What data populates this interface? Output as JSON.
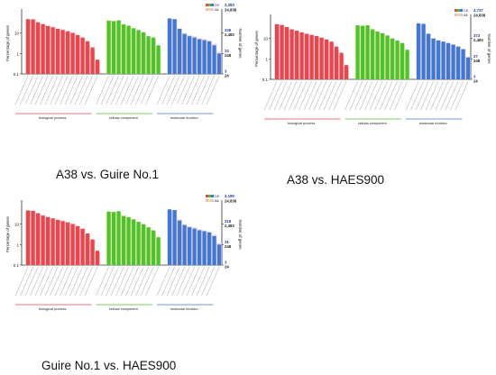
{
  "captions": {
    "panel_a": "A38 vs. Guire No.1",
    "panel_b": "A38 vs. HAES900",
    "panel_c": "Guire No.1 vs. HAES900"
  },
  "colors": {
    "biological_process": "#e8474b",
    "cellular_component": "#4dc233",
    "molecular_function": "#3f79d1",
    "all_shade": "#f4b6c8",
    "all_shade_cc": "#e3e38a",
    "all_shade_mf": "#ddc5e8",
    "right_axis_label": "#1f3fa3"
  },
  "chart_data": [
    {
      "type": "bar",
      "panel": "A38 vs. Guire No.1",
      "ylabel": "Percentage of genes",
      "y2label": "Number of genes",
      "yscale": "log",
      "ylim": [
        0.1,
        100
      ],
      "y_ticks": [
        "10",
        "1",
        "0.1"
      ],
      "legend": [
        "DE",
        "All"
      ],
      "legend_values": [
        "3,393",
        "24,838"
      ],
      "right_ticks": [
        [
          "339",
          "2,483"
        ],
        [
          "33",
          "248"
        ],
        [
          "3",
          "24"
        ]
      ],
      "groups": [
        "biological process",
        "cellular component",
        "molecular function"
      ],
      "series": [
        {
          "name": "DE",
          "group": "biological process",
          "values": [
            48,
            47,
            33,
            27,
            22,
            19,
            16,
            14,
            12,
            10,
            8,
            6,
            4,
            2,
            0.5
          ]
        },
        {
          "name": "All",
          "group": "biological process",
          "values": [
            46,
            45,
            35,
            28,
            23,
            20,
            17,
            15,
            13,
            11,
            8,
            6,
            3,
            1.5,
            0.4
          ]
        },
        {
          "name": "DE",
          "group": "cellular component",
          "values": [
            40,
            38,
            42,
            26,
            23,
            17,
            14,
            11,
            7,
            6,
            2.5
          ]
        },
        {
          "name": "All",
          "group": "cellular component",
          "values": [
            42,
            40,
            40,
            27,
            22,
            18,
            13,
            10,
            7,
            5,
            2.2
          ]
        },
        {
          "name": "DE",
          "group": "molecular function",
          "values": [
            52,
            48,
            16,
            9,
            7,
            6,
            5,
            4.5,
            4,
            2.5,
            1
          ]
        },
        {
          "name": "All",
          "group": "molecular function",
          "values": [
            50,
            45,
            17,
            10,
            8,
            7,
            5.5,
            5,
            4,
            3,
            1.2
          ]
        }
      ]
    },
    {
      "type": "bar",
      "panel": "A38 vs. HAES900",
      "ylabel": "Percentage of genes",
      "y2label": "Number of genes",
      "yscale": "log",
      "ylim": [
        0.1,
        100
      ],
      "y_ticks": [
        "10",
        "1",
        "0.1"
      ],
      "legend": [
        "DE",
        "All"
      ],
      "legend_values": [
        "3,737",
        "24,838"
      ],
      "right_ticks": [
        [
          "373",
          "2,483"
        ],
        [
          "37",
          "248"
        ],
        [
          "3",
          "24"
        ]
      ],
      "groups": [
        "biological process",
        "cellular component",
        "molecular function"
      ],
      "series": [
        {
          "name": "DE",
          "group": "biological process",
          "values": [
            50,
            46,
            36,
            28,
            24,
            20,
            17,
            15,
            13,
            11,
            9,
            7,
            4,
            2,
            0.5
          ]
        },
        {
          "name": "All",
          "group": "biological process",
          "values": [
            46,
            45,
            35,
            28,
            23,
            20,
            17,
            15,
            13,
            11,
            8,
            6,
            3,
            1.5,
            0.4
          ]
        },
        {
          "name": "DE",
          "group": "cellular component",
          "values": [
            44,
            42,
            44,
            28,
            22,
            18,
            14,
            10,
            8,
            6,
            2.8
          ]
        },
        {
          "name": "All",
          "group": "cellular component",
          "values": [
            42,
            40,
            40,
            27,
            22,
            18,
            13,
            10,
            7,
            5,
            2.2
          ]
        },
        {
          "name": "DE",
          "group": "molecular function",
          "values": [
            55,
            52,
            17,
            10,
            8,
            7,
            6,
            5,
            4,
            3,
            1.2
          ]
        },
        {
          "name": "All",
          "group": "molecular function",
          "values": [
            50,
            45,
            17,
            10,
            8,
            7,
            5.5,
            5,
            4,
            3,
            1.2
          ]
        }
      ]
    },
    {
      "type": "bar",
      "panel": "Guire No.1 vs. HAES900",
      "ylabel": "Percentage of genes",
      "y2label": "Number of genes",
      "yscale": "log",
      "ylim": [
        0.1,
        100
      ],
      "y_ticks": [
        "10",
        "1",
        "0.1"
      ],
      "legend": [
        "DE",
        "All"
      ],
      "legend_values": [
        "3,189",
        "24,838"
      ],
      "right_ticks": [
        [
          "318",
          "2,483"
        ],
        [
          "31",
          "248"
        ],
        [
          "3",
          "24"
        ]
      ],
      "groups": [
        "biological process",
        "cellular component",
        "molecular function"
      ],
      "series": [
        {
          "name": "DE",
          "group": "biological process",
          "values": [
            47,
            45,
            34,
            26,
            22,
            19,
            16,
            14,
            12,
            10,
            8,
            6,
            3.5,
            1.8,
            0.5
          ]
        },
        {
          "name": "All",
          "group": "biological process",
          "values": [
            46,
            45,
            35,
            28,
            23,
            20,
            17,
            15,
            13,
            11,
            8,
            6,
            3,
            1.5,
            0.4
          ]
        },
        {
          "name": "DE",
          "group": "cellular component",
          "values": [
            41,
            39,
            43,
            25,
            22,
            17,
            13,
            10,
            7,
            5,
            2.3
          ]
        },
        {
          "name": "All",
          "group": "cellular component",
          "values": [
            42,
            40,
            40,
            27,
            22,
            18,
            13,
            10,
            7,
            5,
            2.2
          ]
        },
        {
          "name": "DE",
          "group": "molecular function",
          "values": [
            53,
            49,
            15,
            9,
            7,
            6,
            5,
            4.5,
            4,
            2.6,
            1
          ]
        },
        {
          "name": "All",
          "group": "molecular function",
          "values": [
            50,
            45,
            17,
            10,
            8,
            7,
            5.5,
            5,
            4,
            3,
            1.2
          ]
        }
      ]
    }
  ]
}
